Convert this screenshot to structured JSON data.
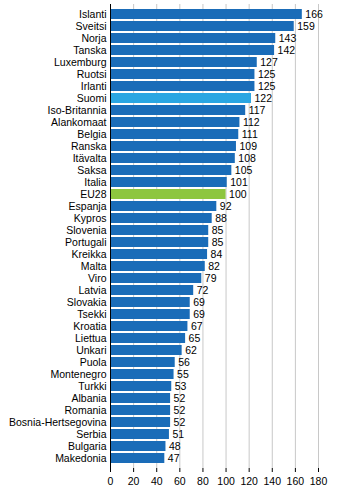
{
  "chart_data": {
    "type": "bar",
    "orientation": "horizontal",
    "categories": [
      "Islanti",
      "Sveitsi",
      "Norja",
      "Tanska",
      "Luxemburg",
      "Ruotsi",
      "Irlanti",
      "Suomi",
      "Iso-Britannia",
      "Alankomaat",
      "Belgia",
      "Ranska",
      "Itävalta",
      "Saksa",
      "Italia",
      "EU28",
      "Espanja",
      "Kypros",
      "Slovenia",
      "Portugali",
      "Kreikka",
      "Malta",
      "Viro",
      "Latvia",
      "Slovakia",
      "Tsekki",
      "Kroatia",
      "Liettua",
      "Unkari",
      "Puola",
      "Montenegro",
      "Turkki",
      "Albania",
      "Romania",
      "Bosnia-Hertsegovina",
      "Serbia",
      "Bulgaria",
      "Makedonia"
    ],
    "values": [
      166,
      159,
      143,
      142,
      127,
      125,
      125,
      122,
      117,
      112,
      111,
      109,
      108,
      105,
      101,
      100,
      92,
      88,
      85,
      85,
      84,
      82,
      79,
      72,
      69,
      69,
      67,
      65,
      62,
      56,
      55,
      53,
      52,
      52,
      52,
      51,
      48,
      47
    ],
    "colors": [
      "#1a6cb8",
      "#1a6cb8",
      "#1a6cb8",
      "#1a6cb8",
      "#1a6cb8",
      "#1a6cb8",
      "#1a6cb8",
      "#2aa6e2",
      "#1a6cb8",
      "#1a6cb8",
      "#1a6cb8",
      "#1a6cb8",
      "#1a6cb8",
      "#1a6cb8",
      "#1a6cb8",
      "#8dc63f",
      "#1a6cb8",
      "#1a6cb8",
      "#1a6cb8",
      "#1a6cb8",
      "#1a6cb8",
      "#1a6cb8",
      "#1a6cb8",
      "#1a6cb8",
      "#1a6cb8",
      "#1a6cb8",
      "#1a6cb8",
      "#1a6cb8",
      "#1a6cb8",
      "#1a6cb8",
      "#1a6cb8",
      "#1a6cb8",
      "#1a6cb8",
      "#1a6cb8",
      "#1a6cb8",
      "#1a6cb8",
      "#1a6cb8",
      "#1a6cb8"
    ],
    "xlim": [
      0,
      180
    ],
    "xticks": [
      0,
      20,
      40,
      60,
      80,
      100,
      120,
      140,
      160,
      180
    ],
    "grid": true,
    "data_labels": true
  }
}
